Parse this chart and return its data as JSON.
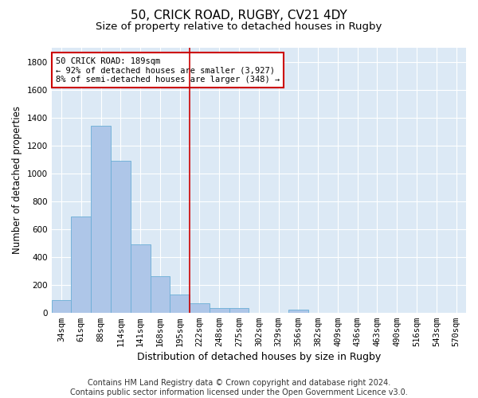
{
  "title1": "50, CRICK ROAD, RUGBY, CV21 4DY",
  "title2": "Size of property relative to detached houses in Rugby",
  "xlabel": "Distribution of detached houses by size in Rugby",
  "ylabel": "Number of detached properties",
  "categories": [
    "34sqm",
    "61sqm",
    "88sqm",
    "114sqm",
    "141sqm",
    "168sqm",
    "195sqm",
    "222sqm",
    "248sqm",
    "275sqm",
    "302sqm",
    "329sqm",
    "356sqm",
    "382sqm",
    "409sqm",
    "436sqm",
    "463sqm",
    "490sqm",
    "516sqm",
    "543sqm",
    "570sqm"
  ],
  "values": [
    90,
    690,
    1340,
    1090,
    490,
    260,
    130,
    65,
    30,
    30,
    0,
    0,
    20,
    0,
    0,
    0,
    0,
    0,
    0,
    0,
    0
  ],
  "bar_color": "#aec6e8",
  "bar_edge_color": "#6aaed6",
  "vline_color": "#cc0000",
  "vline_x": 6.5,
  "annotation_text": "50 CRICK ROAD: 189sqm\n← 92% of detached houses are smaller (3,927)\n8% of semi-detached houses are larger (348) →",
  "annotation_box_color": "#ffffff",
  "annotation_box_edge": "#cc0000",
  "ylim": [
    0,
    1900
  ],
  "yticks": [
    0,
    200,
    400,
    600,
    800,
    1000,
    1200,
    1400,
    1600,
    1800
  ],
  "footnote": "Contains HM Land Registry data © Crown copyright and database right 2024.\nContains public sector information licensed under the Open Government Licence v3.0.",
  "background_color": "#dce9f5",
  "grid_color": "#ffffff",
  "title1_fontsize": 11,
  "title2_fontsize": 9.5,
  "xlabel_fontsize": 9,
  "ylabel_fontsize": 8.5,
  "tick_fontsize": 7.5,
  "footnote_fontsize": 7
}
